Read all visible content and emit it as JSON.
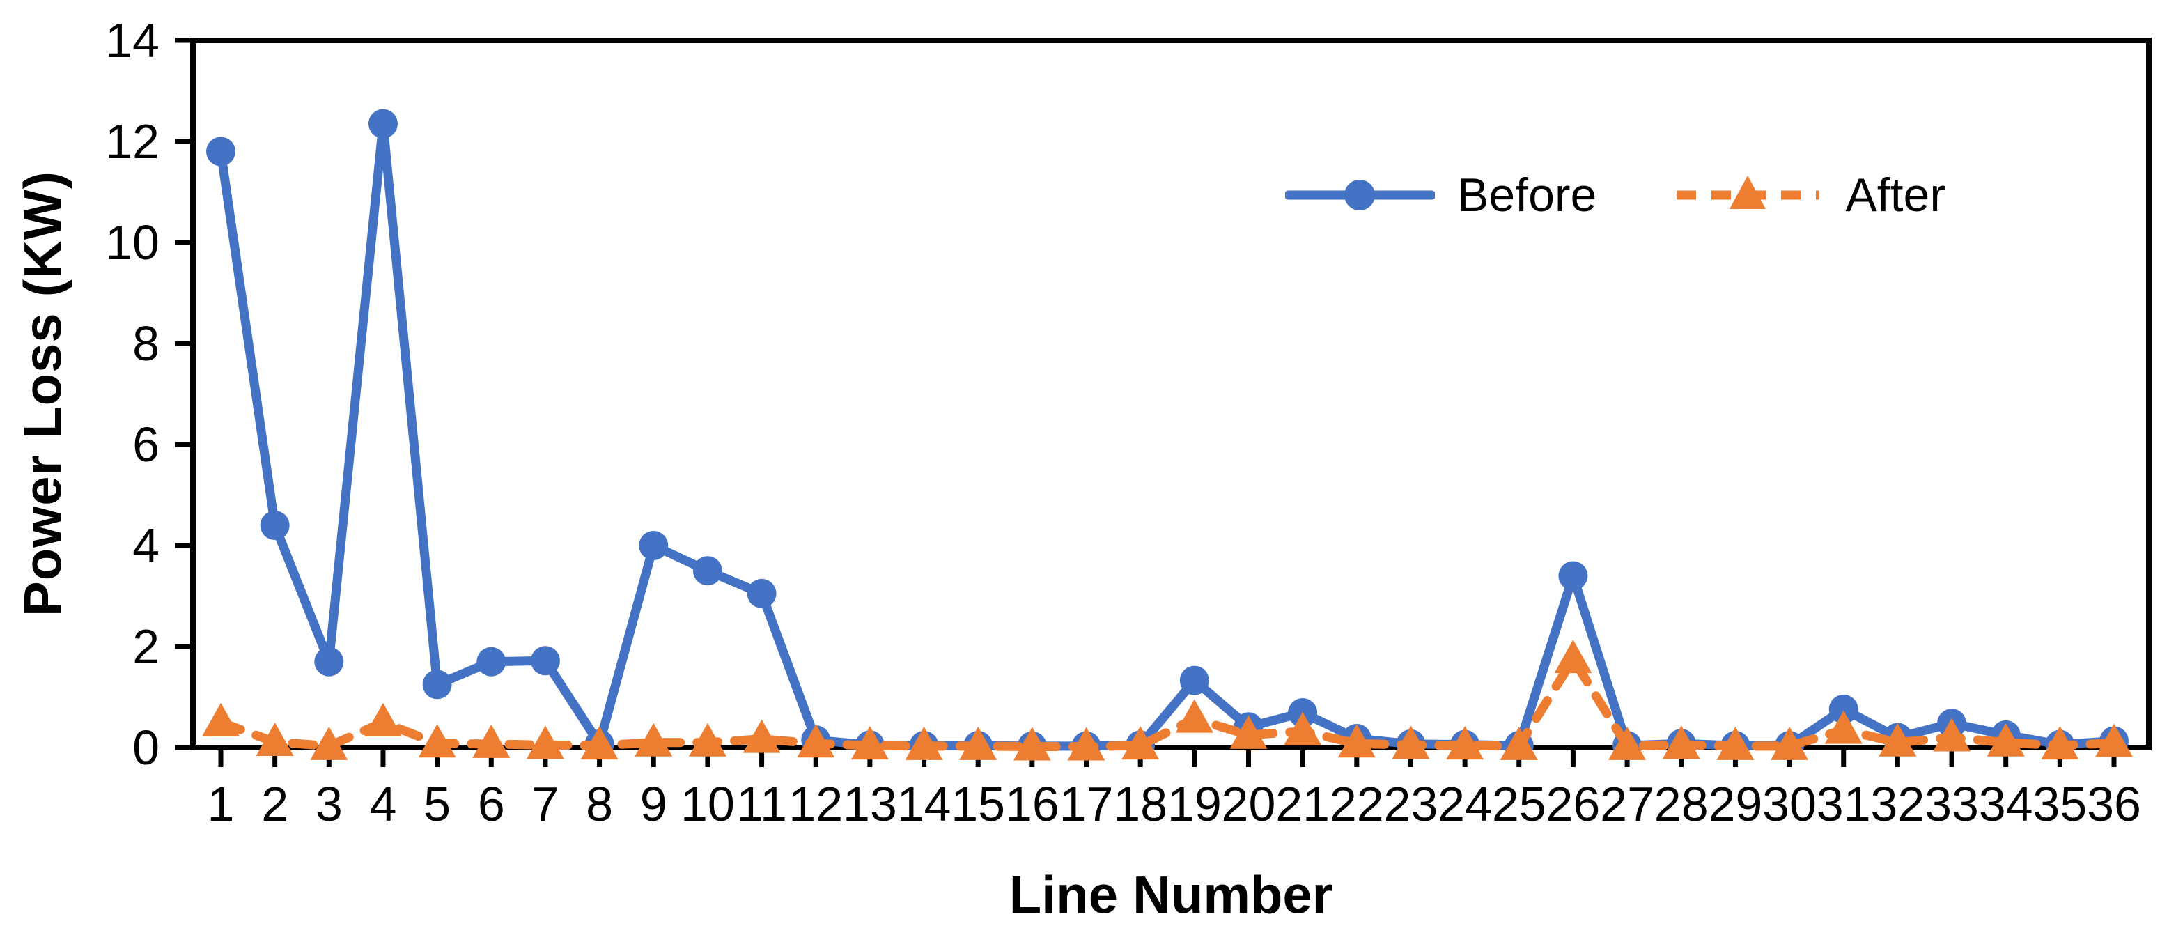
{
  "chart_data": {
    "type": "line",
    "title": "",
    "xlabel": "Line Number",
    "ylabel": "Power Loss (KW)",
    "x": [
      1,
      2,
      3,
      4,
      5,
      6,
      7,
      8,
      9,
      10,
      11,
      12,
      13,
      14,
      15,
      16,
      17,
      18,
      19,
      20,
      21,
      22,
      23,
      24,
      25,
      26,
      27,
      28,
      29,
      30,
      31,
      32,
      33,
      34,
      35,
      36
    ],
    "ylim": [
      0,
      14
    ],
    "yticks": [
      0,
      2,
      4,
      6,
      8,
      10,
      12,
      14
    ],
    "grid": false,
    "legend_position": "top-right-inside",
    "axis_color": "#000000",
    "series": [
      {
        "name": "Before",
        "color": "#4472C4",
        "line_style": "solid",
        "marker": "circle",
        "values": [
          11.8,
          4.4,
          1.7,
          12.35,
          1.25,
          1.7,
          1.72,
          0.07,
          4.0,
          3.5,
          3.05,
          0.15,
          0.05,
          0.04,
          0.04,
          0.03,
          0.03,
          0.05,
          1.33,
          0.41,
          0.69,
          0.18,
          0.07,
          0.06,
          0.04,
          3.4,
          0.04,
          0.08,
          0.04,
          0.04,
          0.76,
          0.2,
          0.48,
          0.25,
          0.06,
          0.13
        ]
      },
      {
        "name": "After",
        "color": "#ED7D31",
        "line_style": "dashed",
        "marker": "triangle",
        "values": [
          0.5,
          0.11,
          0.03,
          0.5,
          0.08,
          0.07,
          0.05,
          0.04,
          0.1,
          0.1,
          0.17,
          0.08,
          0.04,
          0.03,
          0.03,
          0.02,
          0.02,
          0.04,
          0.57,
          0.25,
          0.32,
          0.08,
          0.05,
          0.04,
          0.03,
          1.75,
          0.03,
          0.05,
          0.03,
          0.03,
          0.35,
          0.1,
          0.2,
          0.1,
          0.04,
          0.09
        ]
      }
    ]
  }
}
